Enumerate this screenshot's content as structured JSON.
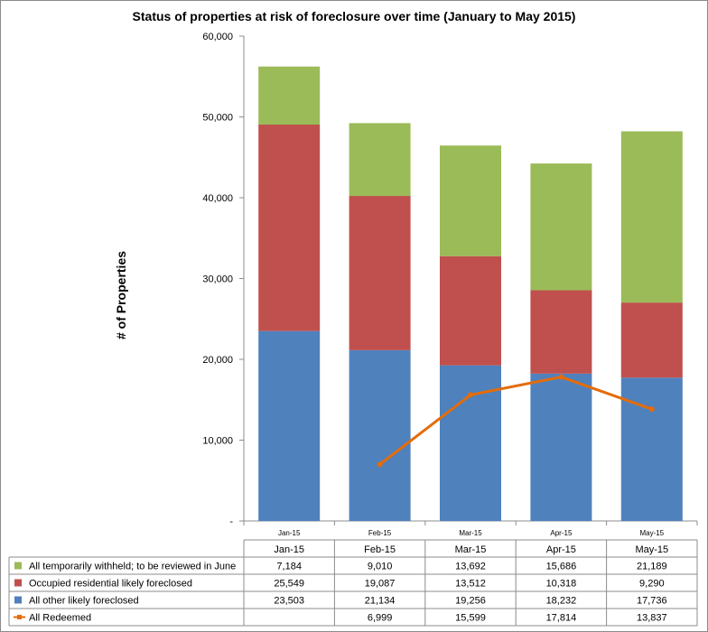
{
  "chart_data": {
    "type": "bar",
    "title": "Status of properties at risk of foreclosure over time (January to May 2015)",
    "xlabel": "",
    "ylabel": "# of Properties",
    "categories": [
      "Jan-15",
      "Feb-15",
      "Mar-15",
      "Apr-15",
      "May-15"
    ],
    "stacked": true,
    "ylim": [
      0,
      60000
    ],
    "yticks": [
      "-",
      "10,000",
      "20,000",
      "30,000",
      "40,000",
      "50,000",
      "60,000"
    ],
    "grid": false,
    "legend_placement": "bottom (data table)",
    "series": [
      {
        "name": "All other likely foreclosed",
        "kind": "bar",
        "color": "#4f81bd",
        "values": [
          23503,
          21134,
          19256,
          18232,
          17736
        ],
        "labels": [
          "23,503",
          "21,134",
          "19,256",
          "18,232",
          "17,736"
        ]
      },
      {
        "name": "Occupied residential likely foreclosed",
        "kind": "bar",
        "color": "#c0504d",
        "values": [
          25549,
          19087,
          13512,
          10318,
          9290
        ],
        "labels": [
          "25,549",
          "19,087",
          "13,512",
          "10,318",
          "9,290"
        ]
      },
      {
        "name": "All temporarily withheld; to be reviewed in June",
        "kind": "bar",
        "color": "#9bbb59",
        "values": [
          7184,
          9010,
          13692,
          15686,
          21189
        ],
        "labels": [
          "7,184",
          "9,010",
          "13,692",
          "15,686",
          "21,189"
        ]
      },
      {
        "name": "All Redeemed",
        "kind": "line",
        "color": "#e46c0a",
        "values": [
          null,
          6999,
          15599,
          17814,
          13837
        ],
        "labels": [
          "",
          "6,999",
          "15,599",
          "17,814",
          "13,837"
        ]
      }
    ]
  }
}
